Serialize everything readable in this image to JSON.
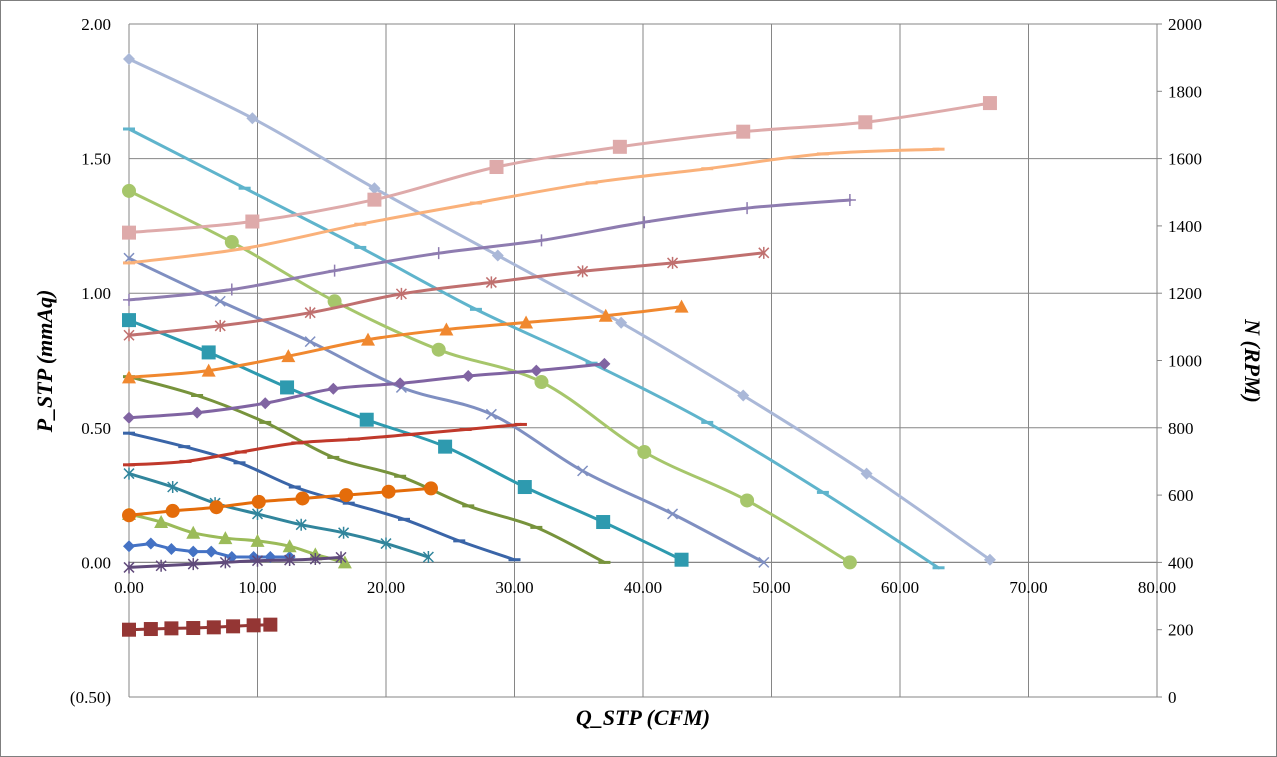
{
  "chart_data": {
    "type": "line",
    "title": "",
    "xlabel": "Q_STP (CFM)",
    "ylabel_left": "P_STP (mmAq)",
    "ylabel_right": "N (RPM)",
    "xlim": [
      0,
      80
    ],
    "ylim_left": [
      -0.5,
      2.0
    ],
    "ylim_right": [
      0,
      2000
    ],
    "grid": true,
    "legend": "none",
    "x_tick_labels": [
      "0.00",
      "10.00",
      "20.00",
      "30.00",
      "40.00",
      "50.00",
      "60.00",
      "70.00",
      "80.00"
    ],
    "y_left_tick_labels": [
      "(0.50)",
      "0.00",
      "0.50",
      "1.00",
      "1.50",
      "2.00"
    ],
    "y_left_negative_color": "#ff0000",
    "y_right_tick_labels": [
      "0",
      "200",
      "400",
      "600",
      "800",
      "1000",
      "1200",
      "1400",
      "1600",
      "1800",
      "2000"
    ],
    "series": [
      {
        "axis": "left",
        "color": "#4472c4",
        "marker": "diamond",
        "curved": false,
        "x": [
          0,
          1.7,
          3.3,
          5.0,
          6.4,
          8.0,
          9.7,
          11.0,
          12.5
        ],
        "y": [
          0.06,
          0.07,
          0.05,
          0.04,
          0.04,
          0.02,
          0.02,
          0.02,
          0.02
        ]
      },
      {
        "axis": "left",
        "color": "#9bbb59",
        "marker": "triangle",
        "curved": true,
        "x": [
          0,
          2.5,
          5.0,
          7.5,
          10.0,
          12.5,
          14.5,
          16.8
        ],
        "y": [
          0.18,
          0.15,
          0.11,
          0.09,
          0.08,
          0.06,
          0.03,
          0.0
        ]
      },
      {
        "axis": "left",
        "color": "#31859c",
        "marker": "star",
        "curved": true,
        "x": [
          0,
          3.4,
          6.7,
          10.0,
          13.4,
          16.7,
          20.0,
          23.3
        ],
        "y": [
          0.33,
          0.28,
          0.22,
          0.18,
          0.14,
          0.11,
          0.07,
          0.02
        ]
      },
      {
        "axis": "left",
        "color": "#3a65a8",
        "marker": "dash",
        "curved": true,
        "x": [
          0,
          4.3,
          8.6,
          12.9,
          17.1,
          21.4,
          25.7,
          30.0
        ],
        "y": [
          0.48,
          0.43,
          0.37,
          0.28,
          0.22,
          0.16,
          0.08,
          0.01
        ]
      },
      {
        "axis": "left",
        "color": "#77933c",
        "marker": "dash",
        "curved": true,
        "x": [
          0,
          5.3,
          10.6,
          15.9,
          21.1,
          26.4,
          31.7,
          37.0
        ],
        "y": [
          0.69,
          0.62,
          0.52,
          0.39,
          0.32,
          0.21,
          0.13,
          0.0
        ]
      },
      {
        "axis": "left",
        "color": "#2e9aaf",
        "marker": "square",
        "curved": true,
        "x": [
          0,
          6.2,
          12.3,
          18.5,
          24.6,
          30.8,
          36.9,
          43.0
        ],
        "y": [
          0.9,
          0.78,
          0.65,
          0.53,
          0.43,
          0.28,
          0.15,
          0.01
        ]
      },
      {
        "axis": "left",
        "color": "#7f8fc1",
        "marker": "x",
        "curved": true,
        "x": [
          0,
          7.1,
          14.1,
          21.2,
          28.2,
          35.3,
          42.3,
          49.4
        ],
        "y": [
          1.13,
          0.97,
          0.82,
          0.65,
          0.55,
          0.34,
          0.18,
          0.0
        ]
      },
      {
        "axis": "left",
        "color": "#a6c66b",
        "marker": "circle",
        "curved": true,
        "x": [
          0,
          8.0,
          16.0,
          24.1,
          32.1,
          40.1,
          48.1,
          56.1
        ],
        "y": [
          1.38,
          1.19,
          0.97,
          0.79,
          0.67,
          0.41,
          0.23,
          0.0
        ]
      },
      {
        "axis": "left",
        "color": "#5fb4cc",
        "marker": "dash",
        "curved": true,
        "x": [
          0,
          9.0,
          18.0,
          27.0,
          36.0,
          45.0,
          54.0,
          63.0
        ],
        "y": [
          1.61,
          1.39,
          1.17,
          0.94,
          0.74,
          0.52,
          0.26,
          -0.02
        ]
      },
      {
        "axis": "left",
        "color": "#aab8d8",
        "marker": "diamond",
        "curved": true,
        "x": [
          0,
          9.6,
          19.1,
          28.7,
          38.3,
          47.8,
          57.4,
          67.0
        ],
        "y": [
          1.87,
          1.65,
          1.39,
          1.14,
          0.89,
          0.62,
          0.33,
          0.01
        ]
      },
      {
        "axis": "right",
        "color": "#943634",
        "marker": "square",
        "curved": false,
        "x": [
          0,
          1.7,
          3.3,
          5.0,
          6.6,
          8.1,
          9.7,
          11.0
        ],
        "y": [
          200,
          202,
          204,
          205,
          207,
          210,
          213,
          215
        ]
      },
      {
        "axis": "right",
        "color": "#604a7b",
        "marker": "star",
        "curved": true,
        "x": [
          0,
          2.5,
          5.0,
          7.5,
          10.0,
          12.5,
          14.5,
          16.5
        ],
        "y": [
          385,
          390,
          395,
          400,
          405,
          407,
          410,
          415
        ]
      },
      {
        "axis": "right",
        "color": "#e46c0a",
        "marker": "circle",
        "curved": true,
        "x": [
          0,
          3.4,
          6.8,
          10.1,
          13.5,
          16.9,
          20.2,
          23.5
        ],
        "y": [
          540,
          553,
          564,
          580,
          590,
          600,
          610,
          620
        ]
      },
      {
        "axis": "right",
        "color": "#c0392b",
        "marker": "dash",
        "curved": true,
        "x": [
          0,
          4.4,
          8.7,
          13.1,
          17.5,
          21.8,
          26.2,
          30.5
        ],
        "y": [
          690,
          700,
          728,
          755,
          766,
          780,
          795,
          810
        ]
      },
      {
        "axis": "right",
        "color": "#8064a2",
        "marker": "diamond",
        "curved": true,
        "x": [
          0,
          5.3,
          10.6,
          15.9,
          21.1,
          26.4,
          31.7,
          37.0
        ],
        "y": [
          830,
          845,
          873,
          916,
          932,
          954,
          970,
          990
        ]
      },
      {
        "axis": "right",
        "color": "#f0882f",
        "marker": "triangle",
        "curved": true,
        "x": [
          0,
          6.2,
          12.4,
          18.6,
          24.7,
          30.9,
          37.1,
          43.0
        ],
        "y": [
          950,
          970,
          1013,
          1062,
          1092,
          1113,
          1133,
          1160
        ]
      },
      {
        "axis": "right",
        "color": "#c0706f",
        "marker": "star",
        "curved": true,
        "x": [
          0,
          7.1,
          14.1,
          21.2,
          28.2,
          35.3,
          42.3,
          49.4
        ],
        "y": [
          1075,
          1103,
          1142,
          1198,
          1232,
          1265,
          1290,
          1320
        ]
      },
      {
        "axis": "right",
        "color": "#8e7cb0",
        "marker": "plus",
        "curved": true,
        "x": [
          0,
          8.0,
          16.0,
          24.1,
          32.1,
          40.1,
          48.1,
          56.1
        ],
        "y": [
          1180,
          1211,
          1267,
          1319,
          1357,
          1411,
          1453,
          1477
        ]
      },
      {
        "axis": "right",
        "color": "#fab17a",
        "marker": "dash",
        "curved": true,
        "x": [
          0,
          9.0,
          18.0,
          27.0,
          36.0,
          45.0,
          54.0,
          63.0
        ],
        "y": [
          1290,
          1333,
          1405,
          1468,
          1528,
          1570,
          1614,
          1628
        ]
      },
      {
        "axis": "right",
        "color": "#deaaaa",
        "marker": "square",
        "curved": true,
        "x": [
          0,
          9.6,
          19.1,
          28.6,
          38.2,
          47.8,
          57.3,
          67.0
        ],
        "y": [
          1380,
          1413,
          1478,
          1575,
          1635,
          1680,
          1708,
          1765
        ]
      }
    ]
  }
}
